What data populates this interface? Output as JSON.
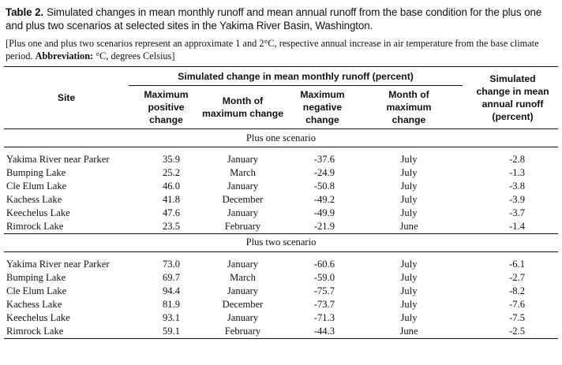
{
  "table": {
    "label": "Table 2.",
    "title": "Simulated changes in mean monthly runoff and mean annual runoff from the base condition for the plus one and plus two scenarios at selected sites in the Yakima River Basin, Washington.",
    "note_text": "[Plus one and plus two scenarios represent an approximate 1 and 2°C, respective annual increase in air temperature from the base climate period. ",
    "abbrev_label": "Abbreviation:",
    "abbrev_text": " °C, degrees Celsius]",
    "headers": {
      "site": "Site",
      "group": "Simulated change in mean monthly runoff (percent)",
      "max_pos": "Maximum positive change",
      "month_max_1": "Month of maximum change",
      "max_neg": "Maximum negative change",
      "month_max_2": "Month of maximum change",
      "annual": "Simulated change in mean annual runoff (percent)"
    },
    "sections": [
      {
        "name": "Plus one scenario",
        "rows": [
          {
            "site": "Yakima River near Parker",
            "max_pos": "35.9",
            "pos_month": "January",
            "max_neg": "-37.6",
            "neg_month": "July",
            "annual": "-2.8"
          },
          {
            "site": "Bumping Lake",
            "max_pos": "25.2",
            "pos_month": "March",
            "max_neg": "-24.9",
            "neg_month": "July",
            "annual": "-1.3"
          },
          {
            "site": "Cle Elum Lake",
            "max_pos": "46.0",
            "pos_month": "January",
            "max_neg": "-50.8",
            "neg_month": "July",
            "annual": "-3.8"
          },
          {
            "site": "Kachess Lake",
            "max_pos": "41.8",
            "pos_month": "December",
            "max_neg": "-49.2",
            "neg_month": "July",
            "annual": "-3.9"
          },
          {
            "site": "Keechelus Lake",
            "max_pos": "47.6",
            "pos_month": "January",
            "max_neg": "-49.9",
            "neg_month": "July",
            "annual": "-3.7"
          },
          {
            "site": "Rimrock Lake",
            "max_pos": "23.5",
            "pos_month": "February",
            "max_neg": "-21.9",
            "neg_month": "June",
            "annual": "-1.4"
          }
        ]
      },
      {
        "name": "Plus two scenario",
        "rows": [
          {
            "site": "Yakima River near Parker",
            "max_pos": "73.0",
            "pos_month": "January",
            "max_neg": "-60.6",
            "neg_month": "July",
            "annual": "-6.1"
          },
          {
            "site": "Bumping Lake",
            "max_pos": "69.7",
            "pos_month": "March",
            "max_neg": "-59.0",
            "neg_month": "July",
            "annual": "-2.7"
          },
          {
            "site": "Cle Elum Lake",
            "max_pos": "94.4",
            "pos_month": "January",
            "max_neg": "-75.7",
            "neg_month": "July",
            "annual": "-8.2"
          },
          {
            "site": "Kachess Lake",
            "max_pos": "81.9",
            "pos_month": "December",
            "max_neg": "-73.7",
            "neg_month": "July",
            "annual": "-7.6"
          },
          {
            "site": "Keechelus Lake",
            "max_pos": "93.1",
            "pos_month": "January",
            "max_neg": "-71.3",
            "neg_month": "July",
            "annual": "-7.5"
          },
          {
            "site": "Rimrock Lake",
            "max_pos": "59.1",
            "pos_month": "February",
            "max_neg": "-44.3",
            "neg_month": "June",
            "annual": "-2.5"
          }
        ]
      }
    ]
  }
}
